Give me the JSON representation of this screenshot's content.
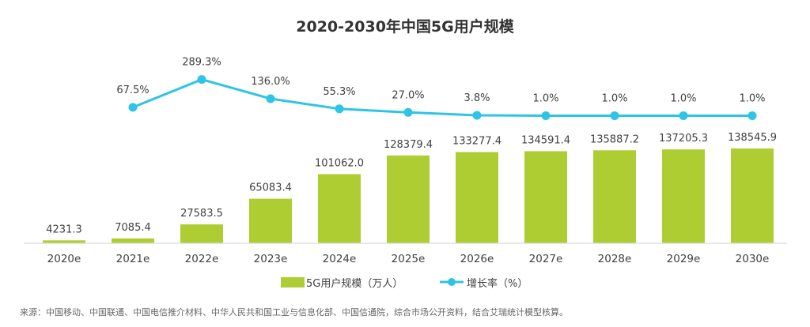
{
  "chart_data": {
    "type": "bar+line",
    "title": "2020-2030年中国5G用户规模",
    "categories": [
      "2020e",
      "2021e",
      "2022e",
      "2023e",
      "2024e",
      "2025e",
      "2026e",
      "2027e",
      "2028e",
      "2029e",
      "2030e"
    ],
    "series": [
      {
        "name": "5G用户规模（万人）",
        "type": "bar",
        "color": "#aecd32",
        "values": [
          4231.3,
          7085.4,
          27583.5,
          65083.4,
          101062.0,
          128379.4,
          133277.4,
          134591.4,
          135887.2,
          137205.3,
          138545.9
        ],
        "labels": [
          "4231.3",
          "7085.4",
          "27583.5",
          "65083.4",
          "101062.0",
          "128379.4",
          "133277.4",
          "134591.4",
          "135887.2",
          "137205.3",
          "138545.9"
        ]
      },
      {
        "name": "增长率（%）",
        "type": "line",
        "color": "#2ec4e6",
        "values": [
          null,
          67.5,
          289.3,
          136.0,
          55.3,
          27.0,
          3.8,
          1.0,
          1.0,
          1.0,
          1.0
        ],
        "labels": [
          null,
          "67.5%",
          "289.3%",
          "136.0%",
          "55.3%",
          "27.0%",
          "3.8%",
          "1.0%",
          "1.0%",
          "1.0%",
          "1.0%"
        ]
      }
    ],
    "xlabel": "",
    "ylabel": "",
    "grid": false,
    "legend": "bottom-center"
  },
  "source_note": "来源：中国移动、中国联通、中国电信推介材料、中华人民共和国工业与信息化部、中国信通院，综合市场公开资料，结合艾瑞统计模型核算。"
}
